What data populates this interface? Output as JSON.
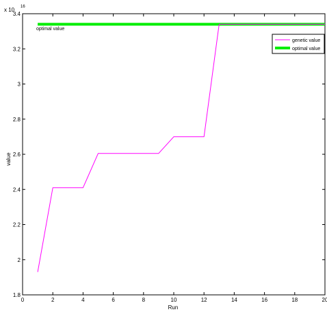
{
  "chart_data": {
    "type": "line",
    "xlabel": "Run",
    "ylabel": "value",
    "y_exponent_label": "x 10",
    "y_exponent": "16",
    "xlim": [
      0,
      20
    ],
    "ylim": [
      1.8,
      3.4
    ],
    "x_ticks": [
      "0",
      "2",
      "4",
      "6",
      "8",
      "10",
      "12",
      "14",
      "16",
      "18",
      "20"
    ],
    "y_ticks": [
      "1.8",
      "2",
      "2.2",
      "2.4",
      "2.6",
      "2.8",
      "3",
      "3.2",
      "3.4"
    ],
    "grid": false,
    "legend_position": "top-right",
    "annotation": "optimal value",
    "series": [
      {
        "name": "genetic value",
        "color": "#ff00ff",
        "x": [
          1,
          2,
          3,
          4,
          5,
          6,
          7,
          8,
          9,
          10,
          11,
          12,
          13,
          14,
          15,
          16,
          17,
          18,
          19,
          20
        ],
        "y": [
          1.93,
          2.41,
          2.41,
          2.41,
          2.605,
          2.605,
          2.605,
          2.605,
          2.605,
          2.7,
          2.7,
          2.7,
          3.34,
          3.34,
          3.34,
          3.34,
          3.34,
          3.34,
          3.34,
          3.34
        ]
      },
      {
        "name": "optimal value",
        "color": "#00ee00",
        "x": [
          1,
          20
        ],
        "y": [
          3.34,
          3.34
        ]
      }
    ]
  }
}
